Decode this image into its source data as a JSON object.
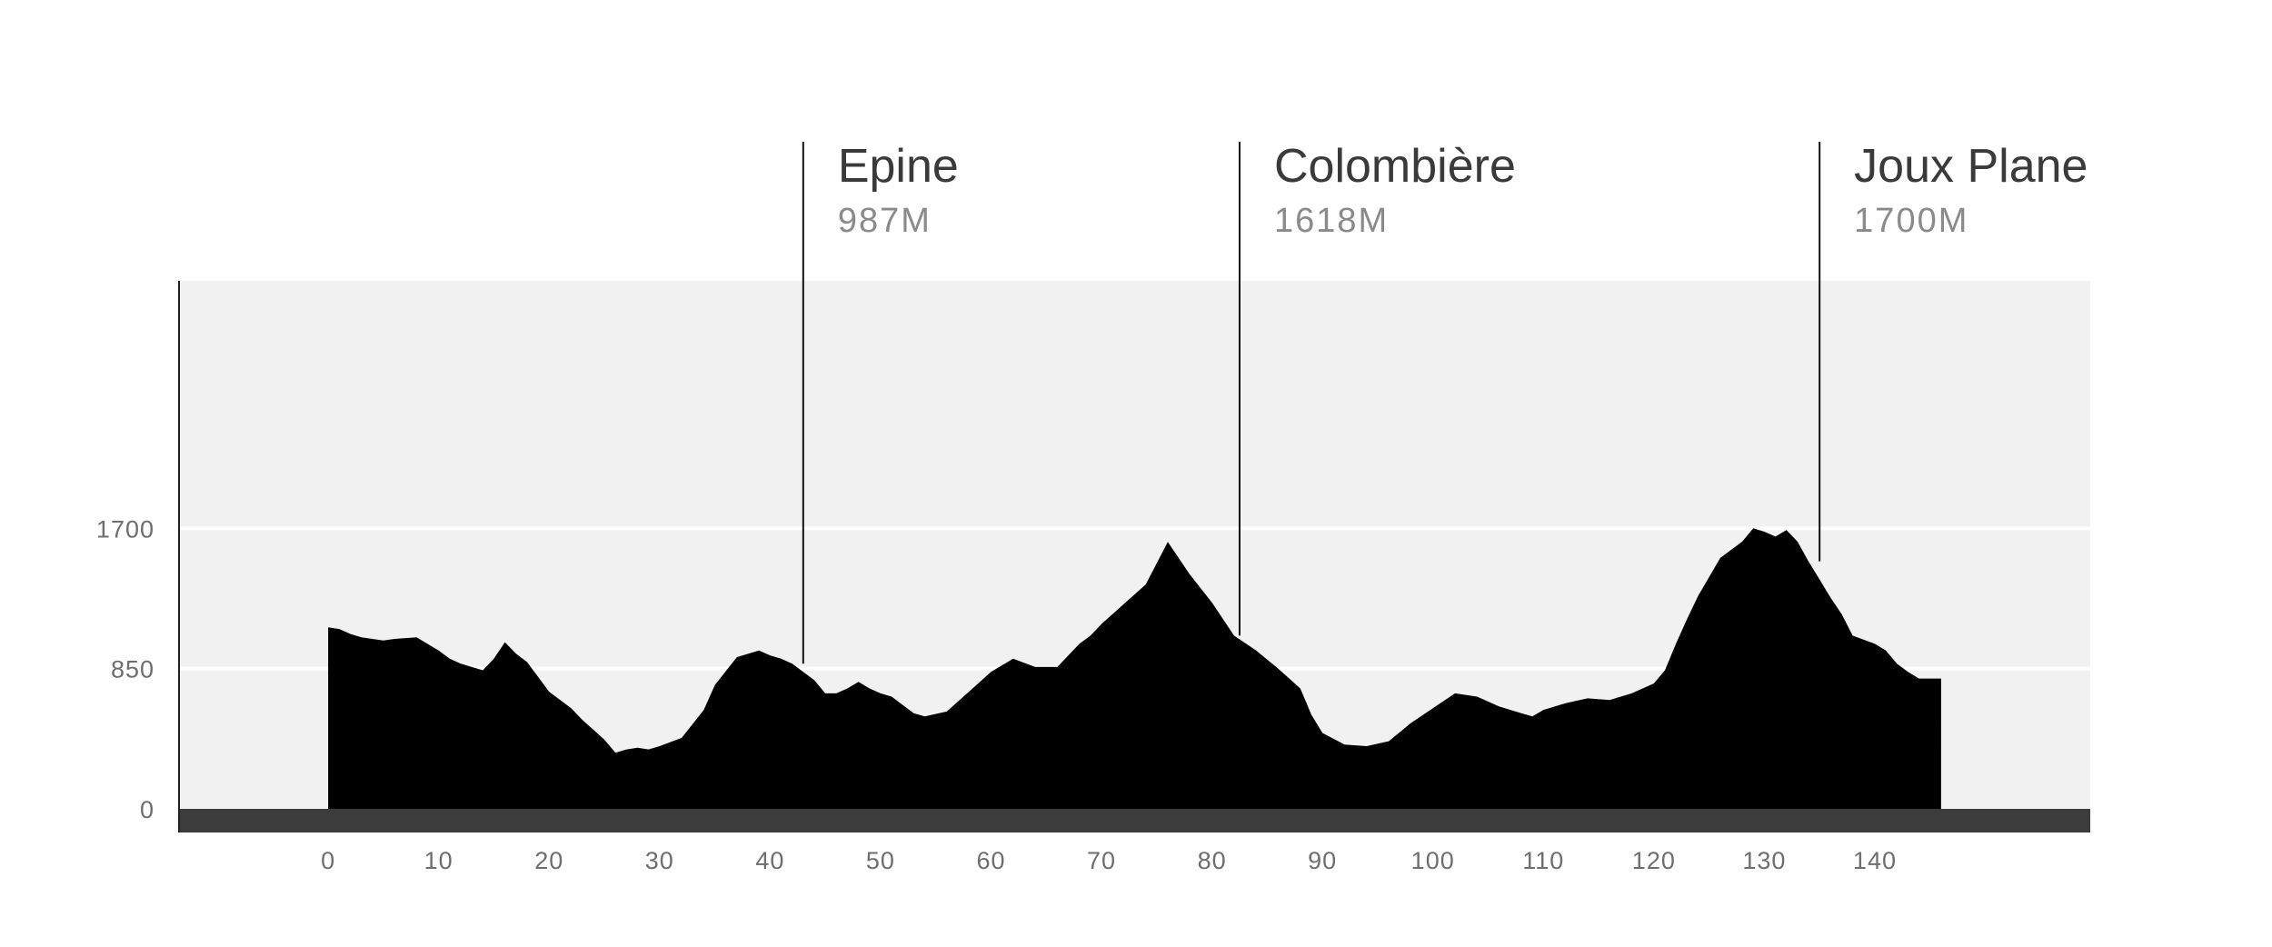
{
  "chart_data": {
    "type": "area",
    "title": "",
    "xlabel": "",
    "ylabel": "",
    "xlim": [
      -13.5,
      159.5
    ],
    "ylim": [
      0,
      3200
    ],
    "x_ticks": [
      0,
      10,
      20,
      30,
      40,
      50,
      60,
      70,
      80,
      90,
      100,
      110,
      120,
      130,
      140
    ],
    "y_ticks": [
      0,
      850,
      1700
    ],
    "grid": "horizontal",
    "colors": {
      "plot_background": "#f1f1f1",
      "profile_fill": "#000000",
      "baseline_bar": "#3c3c3c",
      "gridline": "#ffffff",
      "axis_line": "#222222"
    },
    "series": [
      {
        "x": [
          0,
          1,
          2,
          3,
          4,
          5,
          6,
          8,
          10,
          11,
          12,
          13,
          14,
          15,
          16,
          17,
          18,
          19,
          20,
          21,
          22,
          23,
          25,
          26,
          27,
          28,
          29,
          30,
          32,
          34,
          35,
          37,
          39,
          40,
          41,
          42,
          43,
          44,
          45,
          46,
          47,
          48,
          49,
          50,
          51,
          52,
          53,
          54,
          56,
          58,
          60,
          62,
          64,
          66,
          67,
          68,
          69,
          70,
          71,
          72,
          74,
          76,
          78,
          80,
          82,
          84,
          86,
          88,
          89,
          90,
          92,
          94,
          96,
          98,
          100,
          102,
          104,
          106,
          108,
          109,
          110,
          112,
          114,
          116,
          118,
          120,
          121,
          122,
          123,
          124,
          126,
          128,
          129,
          130,
          131,
          132,
          133,
          134,
          135,
          136,
          137,
          138,
          140,
          141,
          142,
          143,
          144,
          146
        ],
        "y": [
          1100,
          1090,
          1060,
          1040,
          1030,
          1020,
          1030,
          1040,
          960,
          910,
          880,
          860,
          840,
          910,
          1010,
          940,
          890,
          800,
          710,
          660,
          610,
          540,
          420,
          340,
          360,
          370,
          360,
          380,
          430,
          600,
          750,
          920,
          960,
          930,
          910,
          880,
          830,
          780,
          700,
          700,
          730,
          770,
          730,
          700,
          680,
          630,
          580,
          560,
          590,
          710,
          830,
          910,
          860,
          860,
          930,
          1000,
          1050,
          1120,
          1180,
          1240,
          1360,
          1618,
          1420,
          1250,
          1050,
          960,
          850,
          730,
          570,
          460,
          390,
          380,
          410,
          520,
          610,
          700,
          680,
          620,
          580,
          560,
          600,
          640,
          670,
          660,
          700,
          760,
          840,
          1000,
          1150,
          1290,
          1520,
          1620,
          1700,
          1680,
          1650,
          1690,
          1620,
          1500,
          1390,
          1280,
          1180,
          1050,
          1000,
          960,
          880,
          830,
          790,
          790
        ]
      }
    ],
    "summits": [
      {
        "name": "Epine",
        "altitude": "987M",
        "km": 43
      },
      {
        "name": "Colombière",
        "altitude": "1618M",
        "km": 82.5
      },
      {
        "name": "Joux Plane",
        "altitude": "1700M",
        "km": 135
      }
    ]
  }
}
